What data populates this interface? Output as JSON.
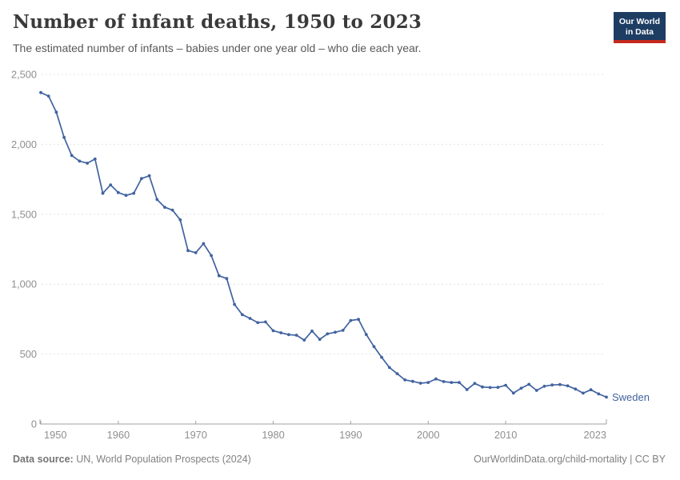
{
  "header": {
    "title": "Number of infant deaths, 1950 to 2023",
    "subtitle": "The estimated number of infants – babies under one year old – who die each year.",
    "logo": {
      "line1": "Our World",
      "line2": "in Data"
    }
  },
  "footer": {
    "datasource_label": "Data source:",
    "datasource_value": " UN, World Population Prospects (2024)",
    "link": "OurWorldinData.org/child-mortality | CC BY"
  },
  "colors": {
    "line": "#41639f",
    "entity_label": "#41639f",
    "axis_text": "#8f8f8f",
    "grid": "#e2e2e2",
    "axis_line": "#a1a1a1",
    "logo_bg": "#1d3d63",
    "logo_red": "#c5291c"
  },
  "chart_data": {
    "type": "line",
    "title": "Number of infant deaths, 1950 to 2023",
    "subtitle": "The estimated number of infants – babies under one year old – who die each year.",
    "entity": "Sweden",
    "xlabel": "",
    "ylabel": "",
    "xlim": [
      1950,
      2023
    ],
    "ylim": [
      0,
      2500
    ],
    "xticks": [
      1950,
      1960,
      1970,
      1980,
      1990,
      2000,
      2010,
      2023
    ],
    "yticks": [
      0,
      500,
      1000,
      1500,
      2000,
      2500
    ],
    "grid": true,
    "legend_position": "end-of-line",
    "x": [
      1950,
      1951,
      1952,
      1953,
      1954,
      1955,
      1956,
      1957,
      1958,
      1959,
      1960,
      1961,
      1962,
      1963,
      1964,
      1965,
      1966,
      1967,
      1968,
      1969,
      1970,
      1971,
      1972,
      1973,
      1974,
      1975,
      1976,
      1977,
      1978,
      1979,
      1980,
      1981,
      1982,
      1983,
      1984,
      1985,
      1986,
      1987,
      1988,
      1989,
      1990,
      1991,
      1992,
      1993,
      1994,
      1995,
      1996,
      1997,
      1998,
      1999,
      2000,
      2001,
      2002,
      2003,
      2004,
      2005,
      2006,
      2007,
      2008,
      2009,
      2010,
      2011,
      2012,
      2013,
      2014,
      2015,
      2016,
      2017,
      2018,
      2019,
      2020,
      2021,
      2022,
      2023
    ],
    "values": [
      2370,
      2345,
      2230,
      2050,
      1920,
      1880,
      1865,
      1895,
      1650,
      1710,
      1655,
      1635,
      1650,
      1755,
      1775,
      1605,
      1550,
      1530,
      1460,
      1240,
      1225,
      1290,
      1205,
      1060,
      1040,
      855,
      782,
      755,
      725,
      730,
      667,
      652,
      639,
      635,
      600,
      665,
      605,
      645,
      656,
      670,
      740,
      748,
      640,
      553,
      477,
      404,
      360,
      315,
      305,
      292,
      297,
      322,
      303,
      297,
      297,
      246,
      290,
      265,
      261,
      262,
      277,
      221,
      256,
      284,
      240,
      270,
      279,
      282,
      273,
      250,
      221,
      245,
      215,
      192
    ]
  }
}
